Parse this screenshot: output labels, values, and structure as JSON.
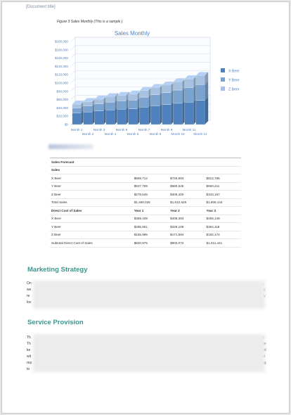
{
  "header": {
    "doc_title": "[Document title]"
  },
  "figure": {
    "caption": "Figure 3 Sales Monthly (This is a sample )"
  },
  "chart_data": {
    "type": "bar",
    "stacked": true,
    "three_d": true,
    "title": "Sales Monthly",
    "categories": [
      "Month 1",
      "Month 2",
      "Month 3",
      "Month 4",
      "Month 5",
      "Month 6",
      "Month 7",
      "Month 8",
      "Month 9",
      "Month 10",
      "Month 11",
      "Month 12"
    ],
    "series": [
      {
        "name": "X Beer",
        "color": "#4f81bd",
        "values": [
          28000,
          30000,
          33000,
          35000,
          37000,
          38000,
          42000,
          45000,
          48000,
          51000,
          54000,
          58000
        ]
      },
      {
        "name": "Y Beer",
        "color": "#7ba3d0",
        "values": [
          12000,
          15000,
          17000,
          19000,
          20000,
          21000,
          24000,
          27000,
          29000,
          32000,
          35000,
          38000
        ]
      },
      {
        "name": "Z Beer",
        "color": "#a7c1e1",
        "values": [
          9000,
          10000,
          11000,
          13000,
          13000,
          14000,
          16000,
          17000,
          18000,
          20000,
          21000,
          22000
        ]
      }
    ],
    "ylim": [
      0,
      200000
    ],
    "yticks": [
      "$0",
      "$20,000",
      "$40,000",
      "$60,000",
      "$80,000",
      "$100,000",
      "$120,000",
      "$140,000",
      "$160,000",
      "$180,000",
      "$200,000"
    ],
    "legend_position": "right",
    "grid": true
  },
  "table": {
    "title": "Sales Forecast",
    "sales_header": {
      "label": "Sales",
      "y1": "",
      "y2": "",
      "y3": ""
    },
    "sales_rows": [
      {
        "label": "X Beer",
        "y1": "$659,712",
        "y2": "$725,683",
        "y3": "$812,765"
      },
      {
        "label": "Y Beer",
        "y1": "$527,769",
        "y2": "$580,546",
        "y3": "$650,211"
      },
      {
        "label": "Z Beer",
        "y1": "$278,545",
        "y2": "$306,400",
        "y3": "$343,167"
      },
      {
        "label": "Total Sales",
        "y1": "$1,466,026",
        "y2": "$1,612,629",
        "y3": "$1,806,144"
      }
    ],
    "cost_header": {
      "label": "Direct Cost of Sales",
      "y1": "Year 1",
      "y2": "Year 2",
      "y3": "Year 3"
    },
    "cost_rows": [
      {
        "label": "X Beer",
        "y1": "$369,439",
        "y2": "$406,383",
        "y3": "$455,149"
      },
      {
        "label": "Y Beer",
        "y1": "$295,551",
        "y2": "$325,106",
        "y3": "$364,118"
      },
      {
        "label": "Z Beer",
        "y1": "$155,985",
        "y2": "$171,584",
        "y3": "$192,174"
      },
      {
        "label": "Subtotal Direct Cost of Sales",
        "y1": "$820,975",
        "y2": "$903,072",
        "y3": "$1,011,441"
      }
    ]
  },
  "sections": {
    "marketing": {
      "heading": "Marketing Strategy",
      "left_fragments": [
        "On",
        "we",
        "re",
        "lov"
      ],
      "right_fragments": [
        ",",
        "y",
        "y"
      ]
    },
    "service": {
      "heading": "Service Provision",
      "left_fragments": [
        "Th",
        "Th",
        "ke",
        "wit",
        "rep",
        "to"
      ],
      "right_fragments": [
        "y.",
        "be",
        "ed",
        "ut",
        "ng"
      ]
    }
  }
}
